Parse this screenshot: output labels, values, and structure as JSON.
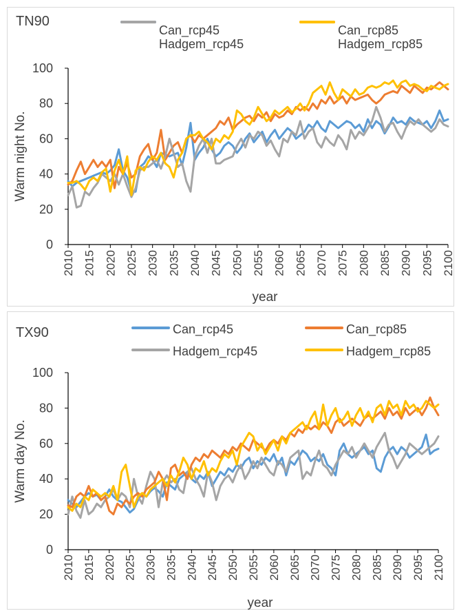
{
  "chart_data": [
    {
      "type": "line",
      "title": "TN90",
      "xlabel": "year",
      "ylabel": "Warm night No.",
      "ylim": [
        0,
        100
      ],
      "yticks": [
        0,
        20,
        40,
        60,
        80,
        100
      ],
      "xlim": [
        2010,
        2100
      ],
      "xticks": [
        2010,
        2015,
        2020,
        2025,
        2030,
        2035,
        2040,
        2045,
        2050,
        2055,
        2060,
        2065,
        2070,
        2075,
        2080,
        2085,
        2090,
        2095,
        2100
      ],
      "grid": false,
      "legend": "top",
      "x": [
        2010,
        2011,
        2012,
        2013,
        2014,
        2015,
        2016,
        2017,
        2018,
        2019,
        2020,
        2021,
        2022,
        2023,
        2024,
        2025,
        2026,
        2027,
        2028,
        2029,
        2030,
        2031,
        2032,
        2033,
        2034,
        2035,
        2036,
        2037,
        2038,
        2039,
        2040,
        2041,
        2042,
        2043,
        2044,
        2045,
        2046,
        2047,
        2048,
        2049,
        2050,
        2051,
        2052,
        2053,
        2054,
        2055,
        2056,
        2057,
        2058,
        2059,
        2060,
        2061,
        2062,
        2063,
        2064,
        2065,
        2066,
        2067,
        2068,
        2069,
        2070,
        2071,
        2072,
        2073,
        2074,
        2075,
        2076,
        2077,
        2078,
        2079,
        2080,
        2081,
        2082,
        2083,
        2084,
        2085,
        2086,
        2087,
        2088,
        2089,
        2090,
        2091,
        2092,
        2093,
        2094,
        2095,
        2096,
        2097,
        2098,
        2099,
        2100
      ],
      "series": [
        {
          "name": "Can_rcp45",
          "color": "#5b9bd5",
          "values": [
            36,
            33,
            35,
            36,
            37,
            38,
            39,
            40,
            41,
            40,
            42,
            45,
            54,
            42,
            38,
            30,
            30,
            44,
            46,
            50,
            48,
            44,
            52,
            51,
            50,
            51,
            52,
            45,
            55,
            69,
            48,
            52,
            55,
            60,
            54,
            50,
            52,
            56,
            58,
            56,
            52,
            55,
            60,
            63,
            58,
            61,
            64,
            58,
            62,
            65,
            60,
            63,
            66,
            64,
            60,
            62,
            64,
            68,
            66,
            70,
            66,
            64,
            70,
            68,
            66,
            68,
            70,
            69,
            66,
            68,
            64,
            71,
            66,
            70,
            68,
            63,
            67,
            72,
            69,
            70,
            68,
            72,
            70,
            69,
            68,
            70,
            66,
            70,
            76,
            70,
            71
          ]
        },
        {
          "name": "Can_rcp85",
          "color": "#ed7d31",
          "values": [
            34,
            36,
            42,
            47,
            40,
            44,
            48,
            44,
            47,
            44,
            48,
            32,
            44,
            40,
            46,
            38,
            40,
            50,
            54,
            57,
            48,
            52,
            65,
            48,
            52,
            56,
            58,
            52,
            60,
            62,
            58,
            62,
            60,
            62,
            64,
            66,
            70,
            68,
            72,
            65,
            68,
            70,
            72,
            73,
            70,
            74,
            72,
            75,
            70,
            74,
            72,
            73,
            76,
            74,
            78,
            76,
            78,
            76,
            80,
            77,
            82,
            80,
            84,
            80,
            82,
            84,
            80,
            84,
            82,
            83,
            84,
            85,
            82,
            80,
            82,
            85,
            86,
            87,
            86,
            90,
            88,
            86,
            90,
            88,
            86,
            89,
            88,
            90,
            92,
            90,
            88
          ]
        },
        {
          "name": "Hadgem_rcp45",
          "color": "#a5a5a5",
          "values": [
            28,
            33,
            21,
            22,
            30,
            28,
            32,
            35,
            40,
            38,
            36,
            40,
            34,
            40,
            33,
            27,
            32,
            42,
            44,
            44,
            46,
            48,
            43,
            50,
            60,
            52,
            44,
            46,
            36,
            30,
            50,
            56,
            60,
            52,
            60,
            46,
            46,
            48,
            49,
            50,
            56,
            60,
            55,
            62,
            60,
            64,
            62,
            56,
            59,
            54,
            50,
            60,
            58,
            64,
            62,
            70,
            60,
            64,
            66,
            58,
            55,
            61,
            58,
            56,
            62,
            59,
            54,
            65,
            60,
            64,
            62,
            66,
            70,
            78,
            72,
            64,
            68,
            69,
            64,
            60,
            66,
            70,
            68,
            71,
            68,
            66,
            64,
            66,
            71,
            68,
            67
          ]
        },
        {
          "name": "Hadgem_rcp85",
          "color": "#ffc000",
          "values": [
            35,
            35,
            36,
            34,
            31,
            36,
            38,
            36,
            41,
            43,
            30,
            42,
            48,
            40,
            50,
            28,
            42,
            44,
            42,
            47,
            50,
            48,
            52,
            46,
            44,
            38,
            48,
            52,
            60,
            62,
            62,
            64,
            60,
            58,
            54,
            60,
            58,
            62,
            60,
            64,
            76,
            74,
            70,
            68,
            72,
            78,
            74,
            70,
            72,
            76,
            74,
            76,
            78,
            75,
            77,
            80,
            76,
            80,
            86,
            88,
            90,
            85,
            92,
            86,
            82,
            88,
            86,
            84,
            88,
            85,
            86,
            89,
            90,
            89,
            90,
            92,
            91,
            93,
            89,
            92,
            93,
            90,
            91,
            90,
            88,
            87,
            90,
            89,
            88,
            90,
            91
          ]
        }
      ]
    },
    {
      "type": "line",
      "title": "TX90",
      "xlabel": "year",
      "ylabel": "Warm day No.",
      "ylim": [
        0,
        100
      ],
      "yticks": [
        0,
        20,
        40,
        60,
        80,
        100
      ],
      "xlim": [
        2010,
        2100
      ],
      "xticks": [
        2010,
        2015,
        2020,
        2025,
        2030,
        2035,
        2040,
        2045,
        2050,
        2055,
        2060,
        2065,
        2070,
        2075,
        2080,
        2085,
        2090,
        2095,
        2100
      ],
      "grid": false,
      "legend": "top",
      "x": [
        2010,
        2011,
        2012,
        2013,
        2014,
        2015,
        2016,
        2017,
        2018,
        2019,
        2020,
        2021,
        2022,
        2023,
        2024,
        2025,
        2026,
        2027,
        2028,
        2029,
        2030,
        2031,
        2032,
        2033,
        2034,
        2035,
        2036,
        2037,
        2038,
        2039,
        2040,
        2041,
        2042,
        2043,
        2044,
        2045,
        2046,
        2047,
        2048,
        2049,
        2050,
        2051,
        2052,
        2053,
        2054,
        2055,
        2056,
        2057,
        2058,
        2059,
        2060,
        2061,
        2062,
        2063,
        2064,
        2065,
        2066,
        2067,
        2068,
        2069,
        2070,
        2071,
        2072,
        2073,
        2074,
        2075,
        2076,
        2077,
        2078,
        2079,
        2080,
        2081,
        2082,
        2083,
        2084,
        2085,
        2086,
        2087,
        2088,
        2089,
        2090,
        2091,
        2092,
        2093,
        2094,
        2095,
        2096,
        2097,
        2098,
        2099,
        2100
      ],
      "series": [
        {
          "name": "Can_rcp45",
          "color": "#5b9bd5",
          "values": [
            28,
            26,
            24,
            27,
            30,
            32,
            30,
            31,
            28,
            30,
            34,
            30,
            28,
            27,
            24,
            21,
            23,
            28,
            32,
            30,
            33,
            35,
            33,
            30,
            38,
            36,
            34,
            40,
            42,
            44,
            40,
            38,
            42,
            40,
            44,
            36,
            40,
            44,
            42,
            46,
            44,
            48,
            46,
            50,
            52,
            46,
            50,
            48,
            52,
            50,
            54,
            48,
            52,
            42,
            50,
            48,
            52,
            56,
            54,
            50,
            52,
            50,
            54,
            48,
            46,
            42,
            56,
            60,
            54,
            52,
            54,
            56,
            58,
            54,
            56,
            46,
            44,
            52,
            56,
            58,
            54,
            58,
            56,
            52,
            54,
            56,
            58,
            65,
            54,
            56,
            57
          ]
        },
        {
          "name": "Hadgem_rcp45",
          "color": "#a5a5a5",
          "values": [
            20,
            30,
            22,
            18,
            28,
            20,
            22,
            26,
            24,
            28,
            30,
            34,
            28,
            32,
            30,
            24,
            40,
            30,
            26,
            36,
            44,
            40,
            24,
            38,
            42,
            38,
            40,
            34,
            32,
            44,
            46,
            40,
            36,
            30,
            44,
            38,
            28,
            36,
            40,
            42,
            38,
            44,
            48,
            40,
            44,
            50,
            46,
            52,
            48,
            44,
            42,
            50,
            48,
            44,
            52,
            54,
            56,
            40,
            44,
            42,
            50,
            56,
            48,
            46,
            42,
            48,
            52,
            56,
            54,
            58,
            52,
            56,
            60,
            56,
            52,
            58,
            62,
            66,
            56,
            52,
            46,
            50,
            54,
            60,
            58,
            56,
            54,
            56,
            58,
            60,
            64
          ]
        },
        {
          "name": "Can_rcp85",
          "color": "#ed7d31",
          "values": [
            25,
            24,
            30,
            32,
            30,
            36,
            30,
            32,
            28,
            30,
            22,
            20,
            26,
            24,
            28,
            26,
            30,
            32,
            30,
            34,
            36,
            38,
            44,
            40,
            28,
            46,
            48,
            42,
            44,
            40,
            48,
            52,
            50,
            54,
            52,
            56,
            54,
            52,
            56,
            54,
            58,
            56,
            60,
            58,
            56,
            62,
            60,
            58,
            56,
            60,
            62,
            60,
            64,
            62,
            66,
            64,
            68,
            66,
            70,
            68,
            70,
            68,
            72,
            70,
            66,
            72,
            74,
            70,
            72,
            74,
            72,
            70,
            74,
            76,
            74,
            76,
            78,
            74,
            80,
            76,
            78,
            74,
            80,
            76,
            78,
            80,
            76,
            80,
            86,
            80,
            76
          ]
        },
        {
          "name": "Hadgem_rcp85",
          "color": "#ffc000",
          "values": [
            24,
            22,
            26,
            24,
            30,
            28,
            34,
            32,
            30,
            32,
            30,
            36,
            28,
            44,
            48,
            36,
            24,
            30,
            32,
            30,
            34,
            36,
            38,
            40,
            36,
            42,
            38,
            44,
            52,
            48,
            40,
            46,
            44,
            50,
            42,
            46,
            44,
            50,
            54,
            52,
            56,
            48,
            58,
            62,
            66,
            64,
            56,
            60,
            54,
            58,
            62,
            56,
            64,
            60,
            66,
            68,
            70,
            72,
            68,
            74,
            78,
            68,
            82,
            70,
            76,
            80,
            72,
            74,
            78,
            70,
            76,
            80,
            74,
            78,
            72,
            80,
            82,
            76,
            84,
            80,
            82,
            76,
            84,
            80,
            82,
            78,
            80,
            84,
            82,
            80,
            82
          ]
        }
      ]
    }
  ]
}
